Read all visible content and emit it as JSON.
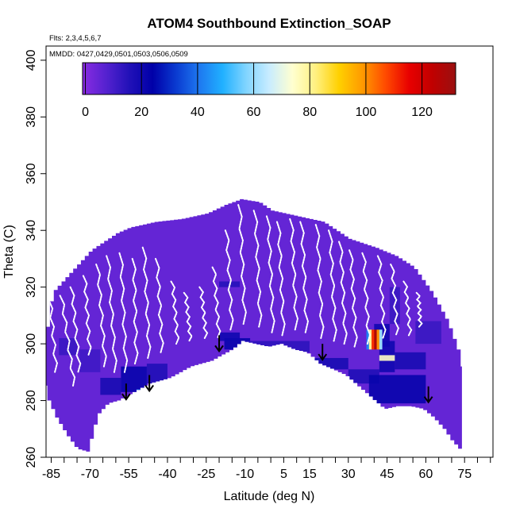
{
  "chart_data": {
    "type": "heatmap",
    "title": "ATOM4 Southbound Extinction_SOAP",
    "xlabel": "Latitude (deg N)",
    "ylabel": "Theta (C)",
    "flights_note": "Flts: 2,3,4,5,6,7",
    "dates_note": "MMDD: 0427,0429,0501,0503,0506,0509",
    "xlim": [
      -87,
      86
    ],
    "ylim": [
      260,
      405
    ],
    "x_ticks": [
      -85,
      -70,
      -55,
      -40,
      -25,
      -10,
      5,
      15,
      30,
      45,
      60,
      75
    ],
    "x_minor_step": 5,
    "y_ticks": [
      260,
      280,
      300,
      320,
      340,
      360,
      380,
      400
    ],
    "colorbar": {
      "min": -1,
      "max": 132,
      "ticks": [
        0,
        20,
        40,
        60,
        80,
        100,
        120
      ],
      "colors": [
        "#8A2BE2",
        "#5522D0",
        "#2211B8",
        "#0000A8",
        "#0A3AD0",
        "#1E78F0",
        "#20B0FF",
        "#7FD4FF",
        "#C8ECFF",
        "#FFFFD0",
        "#FFF080",
        "#FFD000",
        "#FF9A00",
        "#FF4A00",
        "#E80000",
        "#C00000",
        "#9A1010"
      ]
    },
    "data_envelope": {
      "top": [
        [
          -87,
          306
        ],
        [
          -85,
          318
        ],
        [
          -80,
          323
        ],
        [
          -75,
          328
        ],
        [
          -70,
          333
        ],
        [
          -65,
          336
        ],
        [
          -60,
          339
        ],
        [
          -55,
          341
        ],
        [
          -45,
          343
        ],
        [
          -35,
          344
        ],
        [
          -25,
          346
        ],
        [
          -18,
          349
        ],
        [
          -12,
          351
        ],
        [
          -5,
          350
        ],
        [
          0,
          347
        ],
        [
          10,
          345
        ],
        [
          20,
          343
        ],
        [
          30,
          337
        ],
        [
          40,
          334
        ],
        [
          48,
          331
        ],
        [
          55,
          327
        ],
        [
          62,
          318
        ],
        [
          68,
          308
        ],
        [
          72,
          298
        ],
        [
          74,
          290
        ]
      ],
      "bottom": [
        [
          -87,
          287
        ],
        [
          -85,
          280
        ],
        [
          -82,
          274
        ],
        [
          -78,
          268
        ],
        [
          -74,
          263
        ],
        [
          -70,
          262
        ],
        [
          -68,
          268
        ],
        [
          -66,
          275
        ],
        [
          -62,
          279
        ],
        [
          -58,
          280
        ],
        [
          -54,
          282
        ],
        [
          -50,
          284
        ],
        [
          -46,
          286
        ],
        [
          -42,
          287
        ],
        [
          -38,
          288
        ],
        [
          -34,
          290
        ],
        [
          -30,
          292
        ],
        [
          -26,
          293
        ],
        [
          -22,
          294
        ],
        [
          -18,
          296
        ],
        [
          -14,
          298
        ],
        [
          -10,
          301
        ],
        [
          -5,
          300
        ],
        [
          0,
          299
        ],
        [
          5,
          300
        ],
        [
          10,
          298
        ],
        [
          15,
          297
        ],
        [
          20,
          293
        ],
        [
          25,
          291
        ],
        [
          30,
          289
        ],
        [
          35,
          285
        ],
        [
          40,
          281
        ],
        [
          45,
          277
        ],
        [
          50,
          278
        ],
        [
          55,
          278
        ],
        [
          60,
          277
        ],
        [
          64,
          274
        ],
        [
          68,
          270
        ],
        [
          71,
          266
        ],
        [
          74,
          263
        ]
      ]
    },
    "background_value": 5,
    "bands": [
      {
        "x": [
          -66,
          -58
        ],
        "y": [
          282,
          288
        ],
        "value": 18
      },
      {
        "x": [
          -58,
          -48
        ],
        "y": [
          283,
          292
        ],
        "value": 22
      },
      {
        "x": [
          -52,
          -48
        ],
        "y": [
          281,
          284
        ],
        "value": 38
      },
      {
        "x": [
          -48,
          -40
        ],
        "y": [
          286,
          293
        ],
        "value": 16
      },
      {
        "x": [
          -18,
          -8
        ],
        "y": [
          298,
          302
        ],
        "value": 22
      },
      {
        "x": [
          -20,
          -12
        ],
        "y": [
          301,
          304
        ],
        "value": 20
      },
      {
        "x": [
          -20,
          -12
        ],
        "y": [
          320,
          322
        ],
        "value": 15
      },
      {
        "x": [
          -10,
          15
        ],
        "y": [
          297,
          301
        ],
        "value": 14
      },
      {
        "x": [
          15,
          30
        ],
        "y": [
          291,
          295
        ],
        "value": 18
      },
      {
        "x": [
          30,
          42
        ],
        "y": [
          286,
          291
        ],
        "value": 16
      },
      {
        "x": [
          38,
          60
        ],
        "y": [
          279,
          289
        ],
        "value": 22
      },
      {
        "x": [
          42,
          48
        ],
        "y": [
          290,
          301
        ],
        "value": 20
      },
      {
        "x": [
          48,
          60
        ],
        "y": [
          291,
          297
        ],
        "value": 18
      },
      {
        "x": [
          56,
          66
        ],
        "y": [
          300,
          308
        ],
        "value": 12
      },
      {
        "x": [
          40,
          46
        ],
        "y": [
          299,
          307
        ],
        "value": 20
      },
      {
        "x": [
          46,
          50
        ],
        "y": [
          307,
          320
        ],
        "value": 12
      },
      {
        "x": [
          42,
          48
        ],
        "y": [
          294,
          296
        ],
        "value": 75
      },
      {
        "x": [
          -82,
          -75
        ],
        "y": [
          296,
          302
        ],
        "value": 12
      },
      {
        "x": [
          -74,
          -66
        ],
        "y": [
          290,
          298
        ],
        "value": 11
      }
    ],
    "hotspot": {
      "x": [
        37,
        43
      ],
      "y": [
        298,
        305
      ],
      "values": [
        42,
        80,
        110,
        128,
        100,
        60
      ]
    },
    "flight_tracks": [
      [
        [
          -86,
          322
        ],
        [
          -83,
          290
        ]
      ],
      [
        [
          -81,
          317
        ],
        [
          -76,
          285
        ]
      ],
      [
        [
          -77,
          320
        ],
        [
          -74,
          290
        ]
      ],
      [
        [
          -72,
          324
        ],
        [
          -70,
          296
        ]
      ],
      [
        [
          -67,
          328
        ],
        [
          -64,
          292
        ]
      ],
      [
        [
          -63,
          331
        ],
        [
          -60,
          290
        ]
      ],
      [
        [
          -58,
          332
        ],
        [
          -56,
          290
        ]
      ],
      [
        [
          -53,
          330
        ],
        [
          -52,
          293
        ]
      ],
      [
        [
          -49,
          334
        ],
        [
          -47,
          295
        ]
      ],
      [
        [
          -44,
          330
        ],
        [
          -42,
          297
        ]
      ],
      [
        [
          -38,
          322
        ],
        [
          -36,
          300
        ]
      ],
      [
        [
          -33,
          318
        ],
        [
          -31,
          301
        ]
      ],
      [
        [
          -27,
          320
        ],
        [
          -25,
          302
        ]
      ],
      [
        [
          -22,
          327
        ],
        [
          -20,
          302
        ]
      ],
      [
        [
          -17,
          340
        ],
        [
          -15,
          305
        ]
      ],
      [
        [
          -12,
          349
        ],
        [
          -10,
          307
        ]
      ],
      [
        [
          -6,
          347
        ],
        [
          -4,
          306
        ]
      ],
      [
        [
          -1,
          345
        ],
        [
          1,
          304
        ]
      ],
      [
        [
          3,
          343
        ],
        [
          5,
          303
        ]
      ],
      [
        [
          8,
          344
        ],
        [
          10,
          305
        ]
      ],
      [
        [
          12,
          343
        ],
        [
          14,
          304
        ]
      ],
      [
        [
          18,
          342
        ],
        [
          20,
          302
        ]
      ],
      [
        [
          23,
          340
        ],
        [
          25,
          301
        ]
      ],
      [
        [
          27,
          336
        ],
        [
          29,
          300
        ]
      ],
      [
        [
          31,
          333
        ],
        [
          33,
          299
        ]
      ],
      [
        [
          36,
          332
        ],
        [
          38,
          300
        ]
      ],
      [
        [
          42,
          331
        ],
        [
          44,
          302
        ]
      ],
      [
        [
          47,
          328
        ],
        [
          49,
          303
        ]
      ],
      [
        [
          52,
          322
        ],
        [
          54,
          303
        ]
      ],
      [
        [
          57,
          318
        ],
        [
          58,
          306
        ]
      ]
    ],
    "arrows": [
      [
        -20,
        303
      ],
      [
        -47,
        289
      ],
      [
        -56,
        286
      ],
      [
        20,
        300
      ],
      [
        61,
        285
      ]
    ]
  }
}
